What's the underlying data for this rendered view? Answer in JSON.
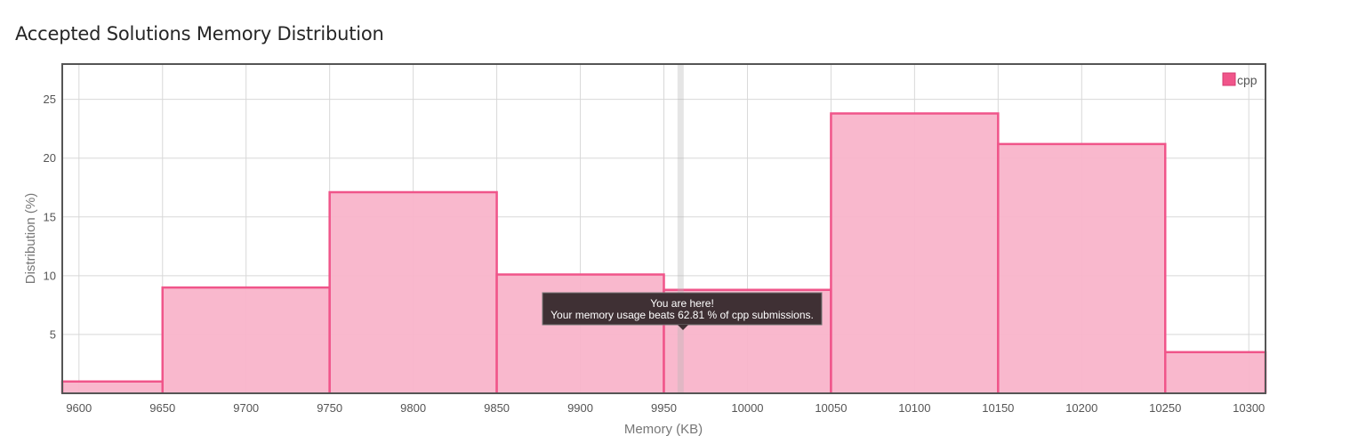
{
  "chart_data": {
    "type": "bar",
    "title": "Accepted Solutions Memory Distribution",
    "xlabel": "Memory (KB)",
    "ylabel": "Distribution (%)",
    "xlim": [
      9590,
      10310
    ],
    "ylim": [
      0,
      28
    ],
    "x_ticks": [
      9600,
      9650,
      9700,
      9750,
      9800,
      9850,
      9900,
      9950,
      10000,
      10050,
      10100,
      10150,
      10200,
      10250,
      10300
    ],
    "y_ticks": [
      5,
      10,
      15,
      20,
      25
    ],
    "grid": true,
    "legend_position": "top-right",
    "series": [
      {
        "name": "cpp",
        "color": "#f0558a",
        "fill": "#f9b4ca",
        "bins": [
          {
            "x0": 9550,
            "x1": 9650,
            "value": 1.0
          },
          {
            "x0": 9650,
            "x1": 9750,
            "value": 9.0
          },
          {
            "x0": 9750,
            "x1": 9850,
            "value": 17.1
          },
          {
            "x0": 9850,
            "x1": 9950,
            "value": 10.1
          },
          {
            "x0": 9950,
            "x1": 10050,
            "value": 8.8
          },
          {
            "x0": 10050,
            "x1": 10150,
            "value": 23.8
          },
          {
            "x0": 10150,
            "x1": 10250,
            "value": 21.2
          },
          {
            "x0": 10250,
            "x1": 10350,
            "value": 3.5
          }
        ]
      }
    ],
    "marker": {
      "x": 9960,
      "label_line1": "You are here!",
      "label_line2": "Your memory usage beats 62.81 % of cpp submissions."
    }
  }
}
